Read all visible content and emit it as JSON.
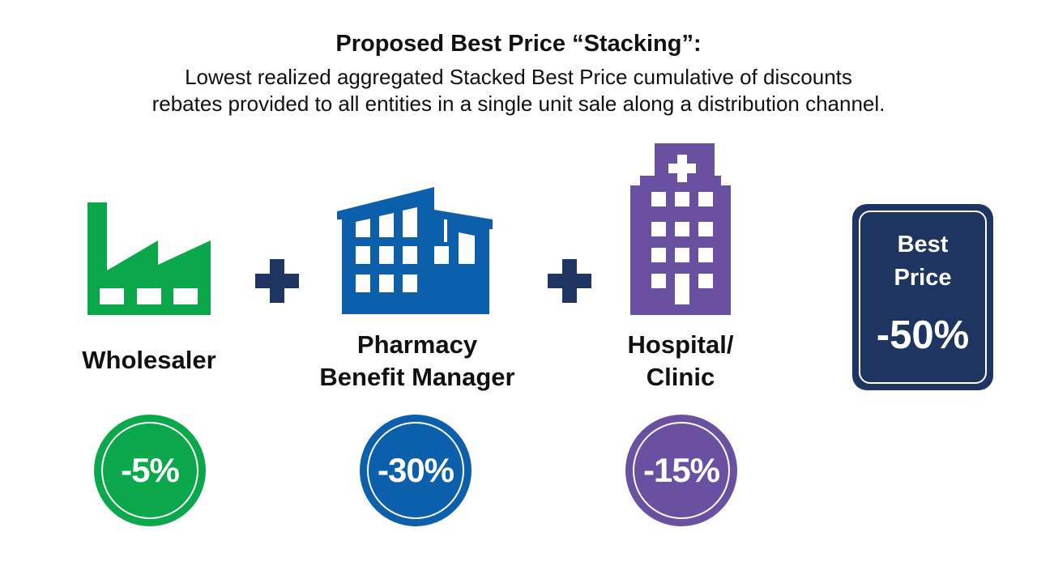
{
  "header": {
    "title": "Proposed Best Price “Stacking”:",
    "subtitle_line1": "Lowest realized aggregated Stacked Best Price cumulative of discounts",
    "subtitle_line2": "rebates provided to all entities in a single unit sale along a distribution channel."
  },
  "entities": [
    {
      "icon": "factory-icon",
      "label_line1": "Wholesaler",
      "label_line2": "",
      "discount": "-5%",
      "color": "#0aa74b"
    },
    {
      "icon": "office-building-icon",
      "label_line1": "Pharmacy",
      "label_line2": "Benefit Manager",
      "discount": "-30%",
      "color": "#0b5fab"
    },
    {
      "icon": "hospital-icon",
      "label_line1": "Hospital/",
      "label_line2": "Clinic",
      "discount": "-15%",
      "color": "#6a50a1"
    }
  ],
  "operators": {
    "plus_icon": "plus-icon",
    "color": "#1e3461"
  },
  "result": {
    "label_line1": "Best",
    "label_line2": "Price",
    "value": "-50%",
    "color": "#1e3461"
  }
}
